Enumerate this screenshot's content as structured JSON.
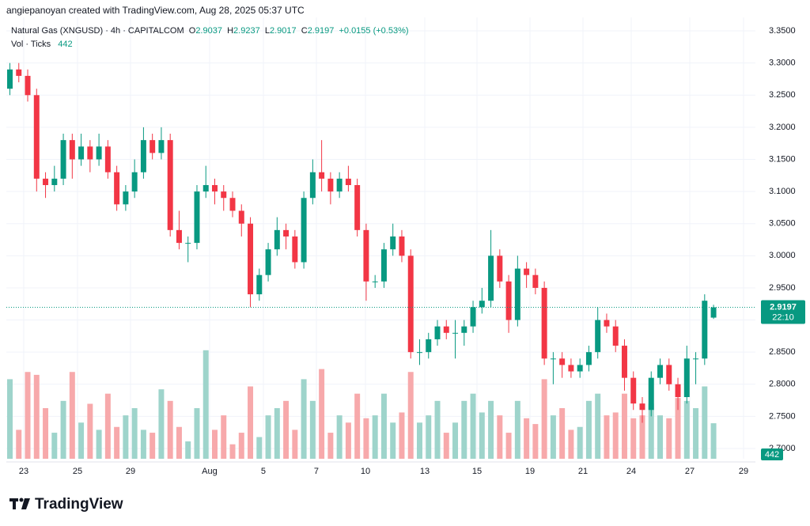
{
  "header": "angiepanoyan created with TradingView.com, Aug 28, 2025 05:37 UTC",
  "chart_data": {
    "type": "candlestick",
    "title": "Natural Gas (XNGUSD) · 4h · CAPITALCOM",
    "legend": {
      "open_label": "O",
      "high_label": "H",
      "low_label": "L",
      "close_label": "C",
      "change": "+0.0155 (+0.53%)"
    },
    "volume_title": "Vol · Ticks",
    "countdown": "22:10",
    "up_color": "#089981",
    "down_color": "#f23645",
    "volume_up_color": "#9ed4cb",
    "volume_down_color": "#f7a9ab",
    "open": [
      3.26,
      3.29,
      3.28,
      3.25,
      3.12,
      3.11,
      3.12,
      3.18,
      3.15,
      3.17,
      3.15,
      3.17,
      3.13,
      3.08,
      3.1,
      3.13,
      3.18,
      3.16,
      3.18,
      3.04,
      3.02,
      3.02,
      3.1,
      3.11,
      3.1,
      3.09,
      3.07,
      3.05,
      2.94,
      2.97,
      3.01,
      3.04,
      3.03,
      2.99,
      3.09,
      3.13,
      3.12,
      3.1,
      3.12,
      3.11,
      3.04,
      2.96,
      2.96,
      3.01,
      3.03,
      3.0,
      2.85,
      2.85,
      2.87,
      2.89,
      2.88,
      2.88,
      2.89,
      2.92,
      2.93,
      3.0,
      2.96,
      2.9,
      2.98,
      2.97,
      2.95,
      2.84,
      2.84,
      2.83,
      2.82,
      2.83,
      2.85,
      2.9,
      2.89,
      2.86,
      2.81,
      2.77,
      2.76,
      2.81,
      2.83,
      2.8,
      2.78,
      2.84,
      2.84,
      2.9037
    ],
    "high": [
      3.3,
      3.3,
      3.29,
      3.26,
      3.13,
      3.14,
      3.19,
      3.19,
      3.19,
      3.18,
      3.19,
      3.18,
      3.14,
      3.11,
      3.15,
      3.2,
      3.19,
      3.2,
      3.19,
      3.07,
      3.03,
      3.11,
      3.14,
      3.12,
      3.11,
      3.1,
      3.08,
      3.06,
      2.98,
      3.02,
      3.06,
      3.05,
      3.04,
      3.1,
      3.15,
      3.18,
      3.13,
      3.13,
      3.14,
      3.12,
      3.05,
      2.97,
      3.02,
      3.05,
      3.04,
      3.01,
      2.87,
      2.88,
      2.9,
      2.9,
      2.9,
      2.9,
      2.93,
      2.95,
      3.04,
      3.01,
      2.97,
      3.0,
      2.99,
      2.98,
      2.96,
      2.85,
      2.85,
      2.84,
      2.84,
      2.86,
      2.92,
      2.91,
      2.9,
      2.87,
      2.82,
      2.78,
      2.82,
      2.84,
      2.84,
      2.81,
      2.86,
      2.85,
      2.94,
      2.9237
    ],
    "low": [
      3.25,
      3.27,
      3.24,
      3.1,
      3.09,
      3.1,
      3.11,
      3.12,
      3.14,
      3.13,
      3.14,
      3.12,
      3.07,
      3.07,
      3.09,
      3.12,
      3.15,
      3.15,
      3.03,
      3.01,
      2.99,
      3.01,
      3.09,
      3.08,
      3.07,
      3.06,
      3.03,
      2.92,
      2.93,
      2.96,
      3.0,
      3.01,
      2.98,
      2.98,
      3.08,
      3.1,
      3.08,
      3.09,
      3.1,
      3.03,
      2.93,
      2.95,
      2.95,
      3.0,
      2.99,
      2.84,
      2.83,
      2.84,
      2.86,
      2.87,
      2.84,
      2.86,
      2.88,
      2.91,
      2.92,
      2.95,
      2.88,
      2.89,
      2.95,
      2.94,
      2.83,
      2.8,
      2.81,
      2.81,
      2.81,
      2.82,
      2.84,
      2.88,
      2.85,
      2.79,
      2.76,
      2.74,
      2.75,
      2.8,
      2.79,
      2.76,
      2.77,
      2.8,
      2.83,
      2.9017
    ],
    "close": [
      3.29,
      3.28,
      3.25,
      3.12,
      3.11,
      3.12,
      3.18,
      3.15,
      3.17,
      3.15,
      3.17,
      3.13,
      3.08,
      3.1,
      3.13,
      3.18,
      3.16,
      3.18,
      3.04,
      3.02,
      3.02,
      3.1,
      3.11,
      3.1,
      3.09,
      3.07,
      3.05,
      2.94,
      2.97,
      3.01,
      3.04,
      3.03,
      2.99,
      3.09,
      3.13,
      3.12,
      3.1,
      3.12,
      3.11,
      3.04,
      2.96,
      2.96,
      3.01,
      3.03,
      3.0,
      2.85,
      2.85,
      2.87,
      2.89,
      2.88,
      2.88,
      2.89,
      2.92,
      2.93,
      3.0,
      2.96,
      2.9,
      2.98,
      2.97,
      2.95,
      2.84,
      2.84,
      2.83,
      2.82,
      2.83,
      2.85,
      2.9,
      2.89,
      2.86,
      2.81,
      2.77,
      2.76,
      2.81,
      2.83,
      2.8,
      2.78,
      2.84,
      2.84,
      2.93,
      2.9197
    ],
    "volume": [
      990,
      360,
      1080,
      1044,
      630,
      324,
      720,
      1080,
      450,
      684,
      360,
      810,
      396,
      540,
      630,
      360,
      324,
      864,
      720,
      396,
      216,
      630,
      1350,
      360,
      540,
      180,
      324,
      900,
      270,
      540,
      630,
      720,
      360,
      990,
      720,
      1116,
      324,
      540,
      450,
      810,
      504,
      540,
      810,
      450,
      576,
      1080,
      450,
      540,
      720,
      324,
      450,
      720,
      810,
      576,
      720,
      540,
      324,
      720,
      504,
      432,
      990,
      540,
      630,
      360,
      396,
      720,
      810,
      540,
      576,
      810,
      504,
      540,
      684,
      540,
      504,
      756,
      720,
      630,
      900,
      442
    ],
    "vlim": [
      0,
      1476
    ],
    "ylim": [
      2.684,
      3.371
    ],
    "yticks": [
      {
        "value": 2.7,
        "label": "2.7000"
      },
      {
        "value": 2.75,
        "label": "2.7500"
      },
      {
        "value": 2.8,
        "label": "2.8000"
      },
      {
        "value": 2.85,
        "label": "2.8500"
      },
      {
        "value": 2.9,
        "label": "2.9000"
      },
      {
        "value": 2.95,
        "label": "2.9500"
      },
      {
        "value": 3.0,
        "label": "3.0000"
      },
      {
        "value": 3.05,
        "label": "3.0500"
      },
      {
        "value": 3.1,
        "label": "3.1000"
      },
      {
        "value": 3.15,
        "label": "3.1500"
      },
      {
        "value": 3.2,
        "label": "3.2000"
      },
      {
        "value": 3.25,
        "label": "3.2500"
      },
      {
        "value": 3.3,
        "label": "3.3000"
      },
      {
        "value": 3.35,
        "label": "3.3500"
      }
    ],
    "xlim": [
      -0.4,
      83.7
    ],
    "xticks": [
      {
        "value": 1.55,
        "label": "23"
      },
      {
        "value": 7.59,
        "label": "25"
      },
      {
        "value": 13.54,
        "label": "29"
      },
      {
        "value": 22.42,
        "label": "Aug"
      },
      {
        "value": 28.46,
        "label": "5"
      },
      {
        "value": 34.41,
        "label": "7"
      },
      {
        "value": 39.92,
        "label": "10"
      },
      {
        "value": 46.58,
        "label": "13"
      },
      {
        "value": 52.44,
        "label": "15"
      },
      {
        "value": 58.39,
        "label": "19"
      },
      {
        "value": 64.34,
        "label": "21"
      },
      {
        "value": 69.76,
        "label": "24"
      },
      {
        "value": 76.33,
        "label": "27"
      },
      {
        "value": 82.37,
        "label": "29"
      }
    ],
    "grid": true
  },
  "footer": {
    "logo": "TradingView"
  }
}
